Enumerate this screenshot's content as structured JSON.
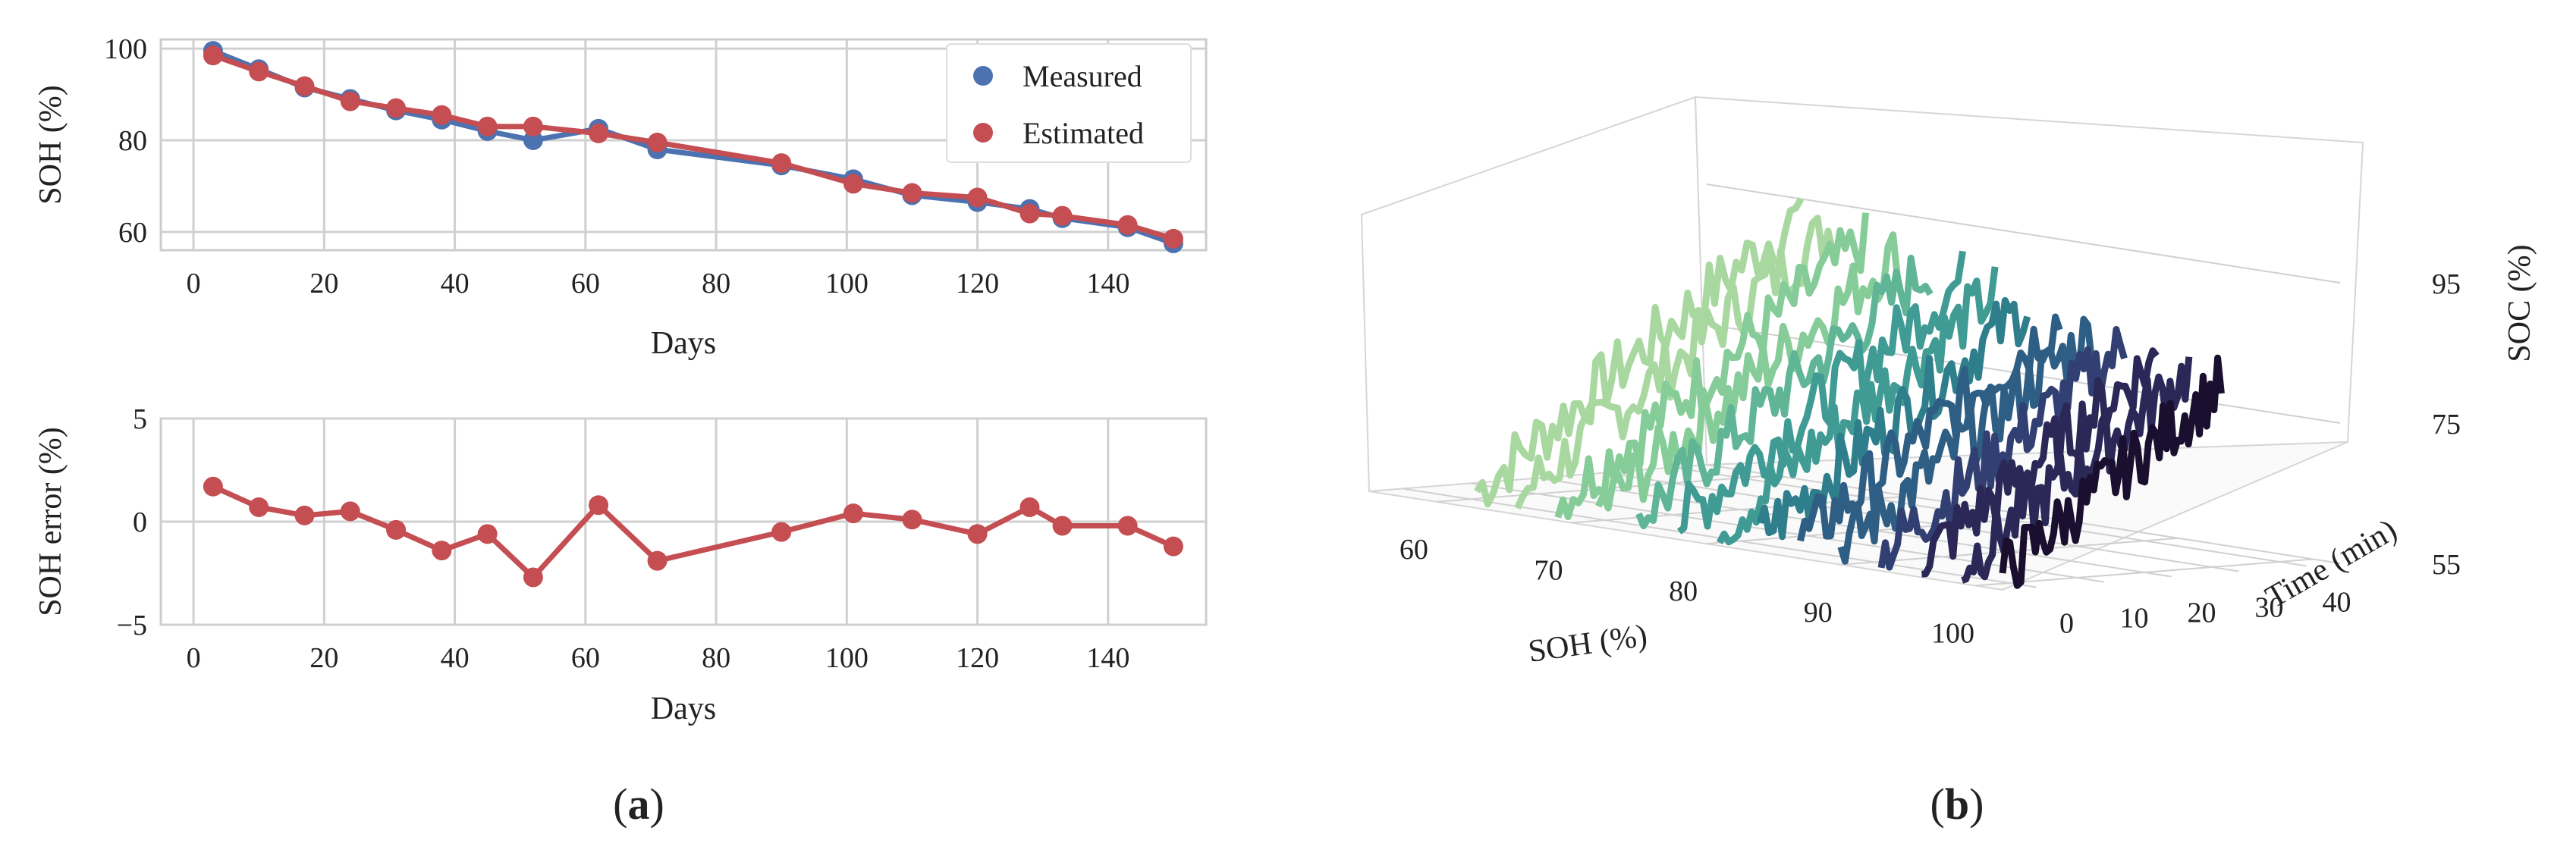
{
  "panels": [
    {
      "open": "(",
      "letter": "a",
      "close": ")"
    },
    {
      "open": "(",
      "letter": "b",
      "close": ")"
    }
  ],
  "colors": {
    "measured": "#4c72b0",
    "estimated": "#c44e52",
    "plot_bg": "#ffffff",
    "grid": "#d0d0d0",
    "spine": "#cccccc",
    "surface_palette": [
      "#a8d8a0",
      "#86cc98",
      "#5fb596",
      "#3f9b94",
      "#2f7e8c",
      "#2e5e84",
      "#313f72",
      "#2b2757",
      "#1a0f2e"
    ]
  },
  "chart_data": [
    {
      "type": "line",
      "id": "soh-vs-days",
      "title": "",
      "xlabel": "Days",
      "ylabel": "SOH (%)",
      "xlim": [
        -5,
        155
      ],
      "ylim": [
        56,
        102
      ],
      "xticks": [
        0,
        20,
        40,
        60,
        80,
        100,
        120,
        140
      ],
      "yticks": [
        60,
        80,
        100
      ],
      "grid": true,
      "legend": {
        "position": "top-right",
        "entries": [
          "Measured",
          "Estimated"
        ]
      },
      "x": [
        3,
        10,
        17,
        24,
        31,
        38,
        45,
        52,
        62,
        71,
        90,
        101,
        110,
        120,
        128,
        133,
        143,
        150
      ],
      "series": [
        {
          "name": "Measured",
          "values": [
            99.5,
            95.5,
            91.5,
            89.0,
            86.5,
            84.5,
            82.0,
            80.0,
            82.5,
            78.0,
            74.5,
            71.5,
            68.0,
            66.5,
            65.0,
            63.0,
            61.0,
            57.5
          ]
        },
        {
          "name": "Estimated",
          "values": [
            98.5,
            95.0,
            91.8,
            88.5,
            87.0,
            85.5,
            83.0,
            83.0,
            81.5,
            79.5,
            75.0,
            70.5,
            68.5,
            67.5,
            64.0,
            63.5,
            61.5,
            58.5
          ]
        }
      ]
    },
    {
      "type": "line",
      "id": "soh-error-vs-days",
      "title": "",
      "xlabel": "Days",
      "ylabel": "SOH error (%)",
      "xlim": [
        -5,
        155
      ],
      "ylim": [
        -5,
        5
      ],
      "xticks": [
        0,
        20,
        40,
        60,
        80,
        100,
        120,
        140
      ],
      "yticks": [
        -5,
        0,
        5
      ],
      "ytick_labels": [
        "−5",
        "0",
        "5"
      ],
      "grid": true,
      "x": [
        3,
        10,
        17,
        24,
        31,
        38,
        45,
        52,
        62,
        71,
        90,
        101,
        110,
        120,
        128,
        133,
        143,
        150
      ],
      "series": [
        {
          "name": "SOH error",
          "values": [
            1.7,
            0.7,
            0.3,
            0.5,
            -0.4,
            -1.4,
            -0.6,
            -2.7,
            0.8,
            -1.9,
            -0.5,
            0.4,
            0.1,
            -0.6,
            0.7,
            -0.2,
            -0.2,
            -1.2
          ]
        }
      ]
    },
    {
      "type": "surface3d",
      "id": "soc-3d",
      "title": "",
      "xlabel": "SOH (%)",
      "ylabel": "Time (min)",
      "zlabel": "SOC (%)",
      "xlim": [
        55,
        102
      ],
      "ylim": [
        -5,
        45
      ],
      "zlim": [
        55,
        95
      ],
      "xticks": [
        60,
        70,
        80,
        90,
        100
      ],
      "yticks": [
        0,
        10,
        20,
        30,
        40
      ],
      "zticks": [
        55,
        75,
        95
      ],
      "series_soh": [
        62,
        65,
        68,
        71,
        74,
        77,
        80,
        83,
        86,
        89,
        92,
        95,
        98,
        101
      ]
    }
  ]
}
